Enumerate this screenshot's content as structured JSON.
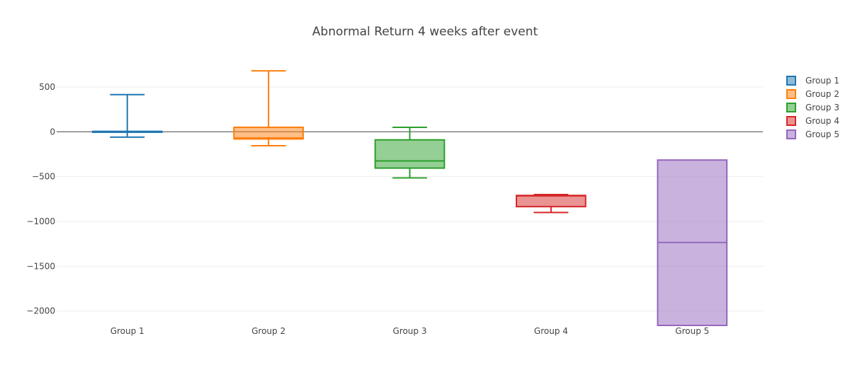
{
  "chart_data": {
    "type": "box",
    "title": "Abnormal Return 4 weeks after event",
    "xlabel": "",
    "ylabel": "",
    "ylim": [
      -2160,
      760
    ],
    "yticks": [
      500,
      0,
      -500,
      -1000,
      -1500,
      -2000
    ],
    "ytick_labels": [
      "500",
      "0",
      "−500",
      "−1000",
      "−1500",
      "−2000"
    ],
    "grid": true,
    "zeroline": true,
    "legend_position": "right",
    "categories": [
      "Group 1",
      "Group 2",
      "Group 3",
      "Group 4",
      "Group 5"
    ],
    "series": [
      {
        "name": "Group 1",
        "color": "#1f77b4",
        "fill": "rgba(31,119,180,0.5)",
        "min": -60,
        "q1": -5,
        "median": 0,
        "q3": 5,
        "max": 415
      },
      {
        "name": "Group 2",
        "color": "#ff7f0e",
        "fill": "rgba(255,127,14,0.5)",
        "min": -155,
        "q1": -80,
        "median": -70,
        "q3": 50,
        "max": 680
      },
      {
        "name": "Group 3",
        "color": "#2ca02c",
        "fill": "rgba(44,160,44,0.5)",
        "min": -515,
        "q1": -405,
        "median": -325,
        "q3": -90,
        "max": 50
      },
      {
        "name": "Group 4",
        "color": "#d62728",
        "fill": "rgba(214,39,40,0.5)",
        "min": -900,
        "q1": -835,
        "median": -715,
        "q3": -710,
        "max": -700
      },
      {
        "name": "Group 5",
        "color": "#9467bd",
        "fill": "rgba(148,103,189,0.5)",
        "min": -2160,
        "q1": -2160,
        "median": -1235,
        "q3": -315,
        "max": -315
      }
    ]
  }
}
